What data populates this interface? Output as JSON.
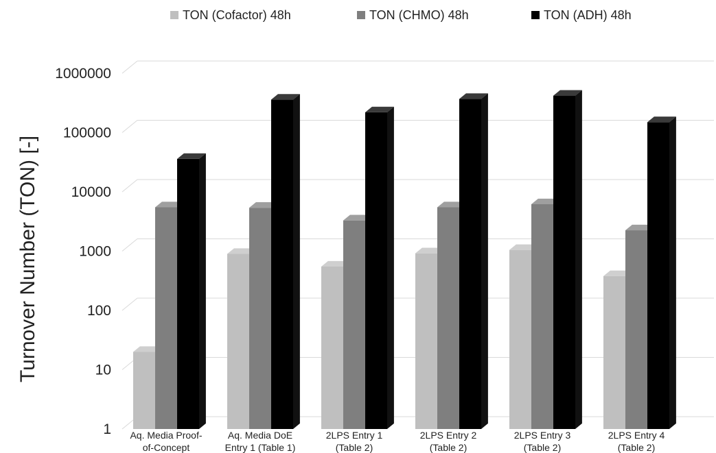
{
  "chart_data": {
    "type": "bar",
    "title": "",
    "xlabel": "",
    "ylabel": "Turnover Number (TON) [-]",
    "yscale": "log",
    "ylim": [
      1,
      1000000
    ],
    "yticks": [
      1,
      10,
      100,
      1000,
      10000,
      100000,
      1000000
    ],
    "ytick_labels": [
      "1",
      "10",
      "100",
      "1000",
      "10000",
      "100000",
      "1000000"
    ],
    "grid": "horizontal",
    "legend_position": "top",
    "categories": [
      [
        "Aq. Media Proof-",
        "of-Concept"
      ],
      [
        "Aq. Media DoE",
        "Entry 1 (Table 1)"
      ],
      [
        "2LPS Entry 1",
        "(Table 2)"
      ],
      [
        "2LPS Entry 2",
        "(Table 2)"
      ],
      [
        "2LPS Entry 3",
        "(Table 2)"
      ],
      [
        "2LPS Entry 4",
        "(Table 2)"
      ]
    ],
    "series": [
      {
        "name": "TON (Cofactor) 48h",
        "color": "#bfbfbf",
        "values": [
          20,
          900,
          550,
          920,
          1050,
          380
        ]
      },
      {
        "name": "TON (CHMO) 48h",
        "color": "#7f7f7f",
        "values": [
          5500,
          5400,
          3300,
          5500,
          6200,
          2250
        ]
      },
      {
        "name": "TON (ADH) 48h",
        "color": "#000000",
        "values": [
          36000,
          360000,
          220000,
          370000,
          420000,
          150000
        ]
      }
    ]
  }
}
